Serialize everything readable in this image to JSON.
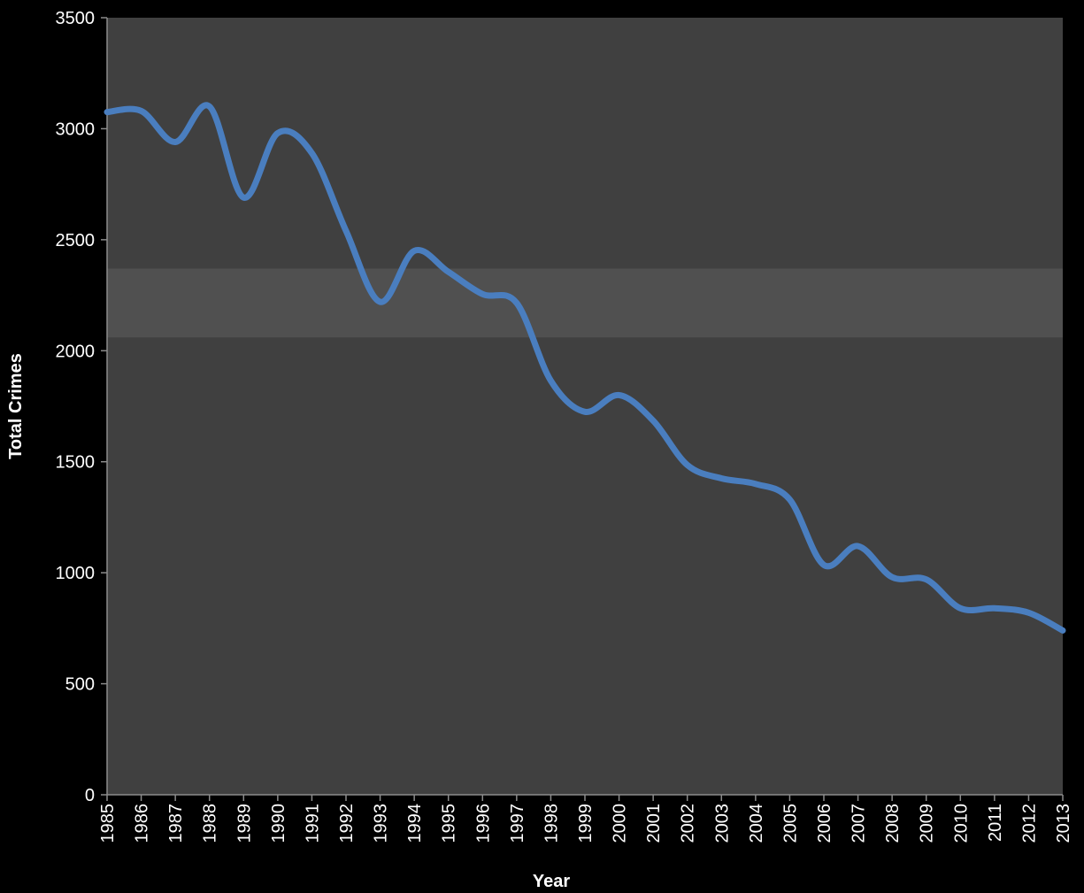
{
  "chart_data": {
    "type": "line",
    "xlabel": "Year",
    "ylabel": "Total Crimes",
    "categories": [
      "1985",
      "1986",
      "1987",
      "1988",
      "1989",
      "1990",
      "1991",
      "1992",
      "1993",
      "1994",
      "1995",
      "1996",
      "1997",
      "1998",
      "1999",
      "2000",
      "2001",
      "2002",
      "2003",
      "2004",
      "2005",
      "2006",
      "2007",
      "2008",
      "2009",
      "2010",
      "2011",
      "2012",
      "2013"
    ],
    "series": [
      {
        "color": "#4a7ebf",
        "values": [
          3075,
          3080,
          2940,
          3100,
          2690,
          2980,
          2890,
          2540,
          2220,
          2450,
          2355,
          2255,
          2215,
          1865,
          1725,
          1800,
          1685,
          1485,
          1425,
          1400,
          1330,
          1035,
          1120,
          980,
          970,
          840,
          840,
          820,
          740
        ]
      }
    ],
    "band": [
      2060,
      2370
    ],
    "ylim": [
      0,
      3500
    ],
    "yticks": [
      0,
      500,
      1000,
      1500,
      2000,
      2500,
      3000,
      3500
    ]
  }
}
